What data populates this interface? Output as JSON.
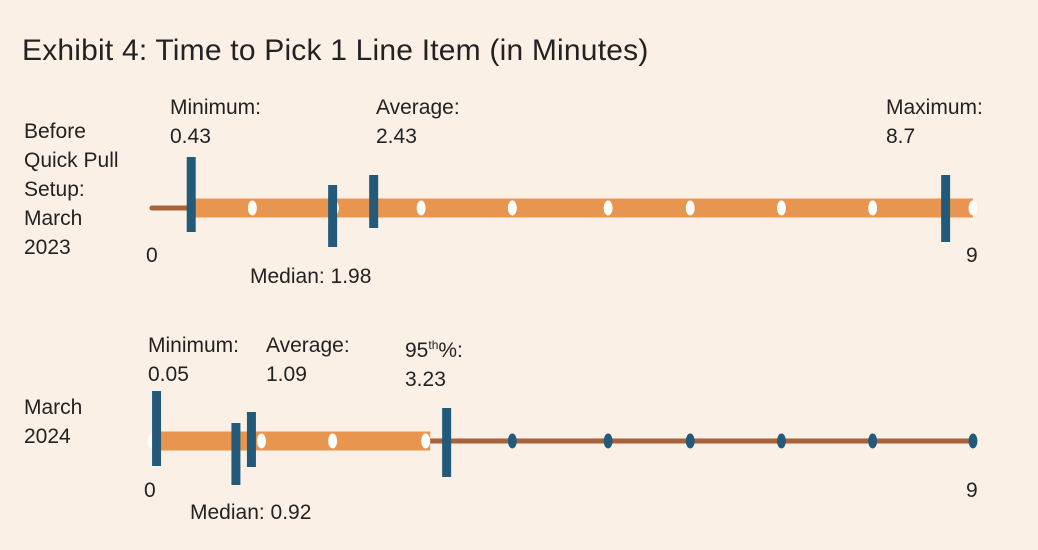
{
  "title": "Exhibit 4: Time to Pick 1 Line Item (in Minutes)",
  "colors": {
    "bar": "#e8964f",
    "line": "#a8623a",
    "marker": "#235a7a",
    "dot_on_bar": "#ffffff",
    "dot_on_line": "#235a7a",
    "background": "#fbf0e6"
  },
  "chart_data": {
    "type": "box",
    "x_range": [
      0,
      9
    ],
    "tick_labels": [
      "0",
      "9"
    ],
    "rows": [
      {
        "label_lines": [
          "Before",
          "Quick Pull",
          "Setup:",
          "March",
          "2023"
        ],
        "bar_range": [
          0.43,
          9
        ],
        "line_range": [
          0,
          0.43
        ],
        "dots_on_bar": [
          1.1,
          2.0,
          2.95,
          3.95,
          5.0,
          5.9,
          6.9,
          7.9,
          9.0
        ],
        "dots_on_line": [],
        "markers": {
          "minimum": {
            "value": 0.43,
            "label": "Minimum:",
            "value_label": "0.43"
          },
          "average": {
            "value": 2.43,
            "label": "Average:",
            "value_label": "2.43"
          },
          "maximum": {
            "value": 8.7,
            "label": "Maximum:",
            "value_label": "8.7"
          },
          "median": {
            "label": "Median: 1.98",
            "value": 1.98
          }
        }
      },
      {
        "label_lines": [
          "March",
          "2024"
        ],
        "bar_range": [
          0,
          3.05
        ],
        "line_range": [
          3.05,
          9
        ],
        "dots_on_bar": [
          0,
          1.2,
          1.98,
          3.0
        ],
        "dots_on_line": [
          3.95,
          5.0,
          5.9,
          6.9,
          7.9,
          9.0
        ],
        "markers": {
          "minimum": {
            "value": 0.05,
            "label": "Minimum:",
            "value_label": "0.05"
          },
          "average": {
            "value": 1.09,
            "label": "Average:",
            "value_label": "1.09"
          },
          "p95": {
            "value": 3.23,
            "label_main": "95",
            "label_sup": "th",
            "label_tail": "%:",
            "value_label": "3.23"
          },
          "median": {
            "label": "Median: 0.92",
            "value": 0.92
          }
        }
      }
    ]
  }
}
